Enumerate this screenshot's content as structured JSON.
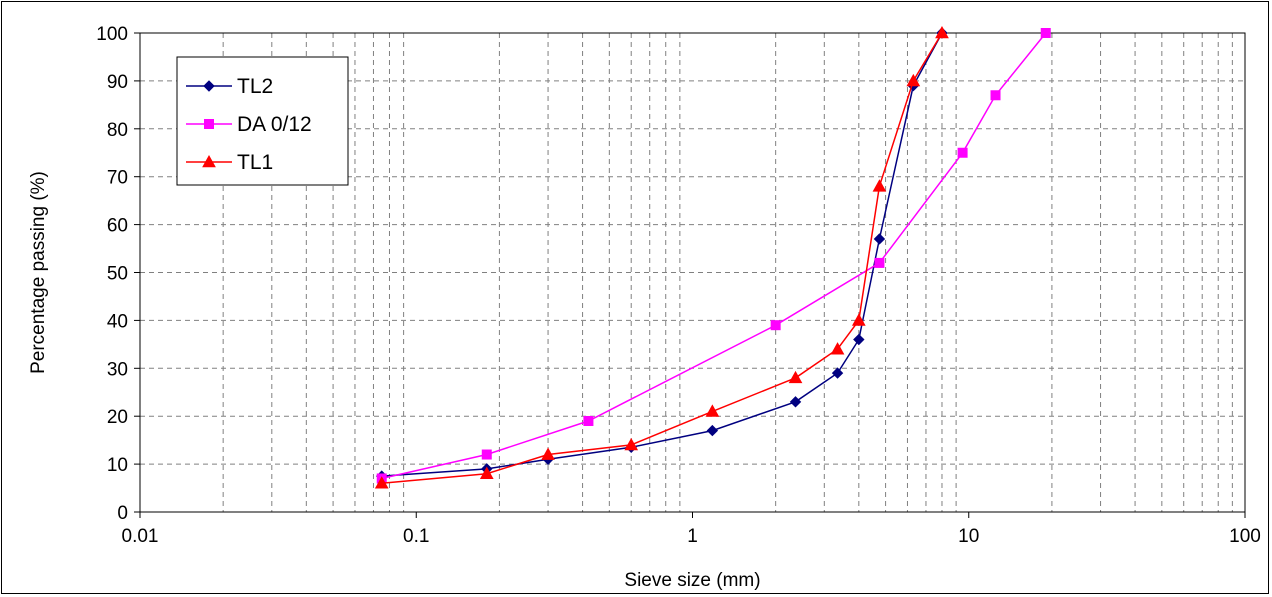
{
  "chart_data": {
    "type": "line",
    "title": "",
    "xlabel": "Sieve size (mm)",
    "ylabel": "Percentage passing (%)",
    "xscale": "log",
    "xlim": [
      0.01,
      100
    ],
    "ylim": [
      0,
      100
    ],
    "x_ticks": [
      "0.01",
      "0.1",
      "1",
      "10",
      "100"
    ],
    "y_ticks": [
      "0",
      "10",
      "20",
      "30",
      "40",
      "50",
      "60",
      "70",
      "80",
      "90",
      "100"
    ],
    "grid": true,
    "legend_position": "top-left",
    "series": [
      {
        "name": "TL2",
        "color": "#000080",
        "marker": "diamond",
        "x": [
          0.075,
          0.18,
          0.3,
          0.6,
          1.18,
          2.36,
          3.35,
          4.0,
          4.75,
          6.3,
          8.0
        ],
        "y": [
          7.5,
          9,
          11,
          13.5,
          17,
          23,
          29,
          36,
          57,
          89,
          100
        ]
      },
      {
        "name": "DA 0/12",
        "color": "#ff00ff",
        "marker": "square",
        "x": [
          0.075,
          0.18,
          0.42,
          2.0,
          4.75,
          9.5,
          12.5,
          19.0
        ],
        "y": [
          7,
          12,
          19,
          39,
          52,
          75,
          87,
          100
        ]
      },
      {
        "name": "TL1",
        "color": "#ff0000",
        "marker": "triangle",
        "x": [
          0.075,
          0.18,
          0.3,
          0.6,
          1.18,
          2.36,
          3.35,
          4.0,
          4.75,
          6.3,
          8.0
        ],
        "y": [
          6,
          8,
          12,
          14,
          21,
          28,
          34,
          40,
          68,
          90,
          100
        ]
      }
    ]
  }
}
